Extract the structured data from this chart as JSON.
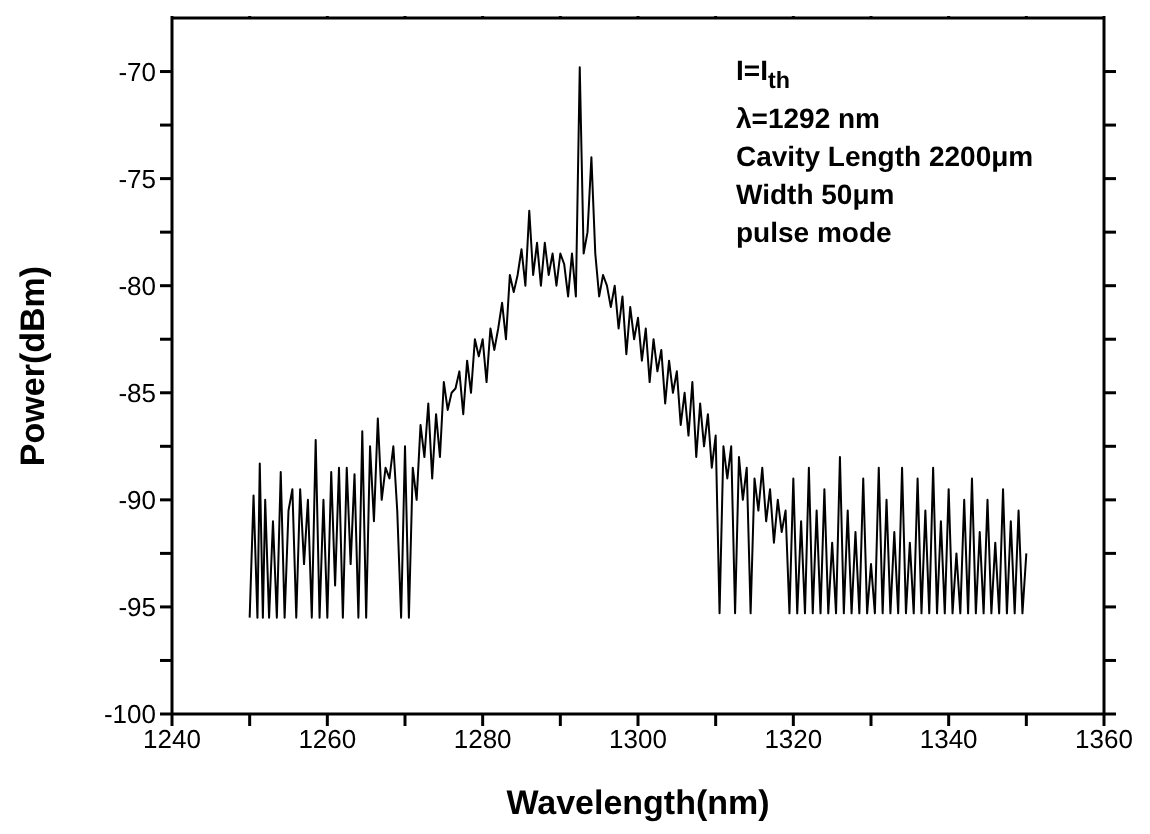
{
  "chart_data": {
    "type": "line",
    "xlabel": "Wavelength(nm)",
    "ylabel": "Power(dBm)",
    "annotations": [
      "I=I$_{th}$",
      "λ=1292 nm",
      "Cavity Length 2200μm",
      "Width 50μm",
      "pulse mode"
    ],
    "xlim": [
      1240,
      1360
    ],
    "ylim": [
      -100,
      -67.5
    ],
    "xticks": [
      1240,
      {
        "value": 1250,
        "label": null
      },
      1260,
      {
        "value": 1270,
        "label": null
      },
      1280,
      {
        "value": 1290,
        "label": null
      },
      1300,
      {
        "value": 1310,
        "label": null
      },
      1320,
      {
        "value": 1330,
        "label": null
      },
      1340,
      {
        "value": 1350,
        "label": null
      },
      1360
    ],
    "yticks": [
      -100,
      {
        "value": -97.5,
        "label": null
      },
      -95,
      {
        "value": -92.5,
        "label": null
      },
      -90,
      {
        "value": -87.5,
        "label": null
      },
      -85,
      {
        "value": -82.5,
        "label": null
      },
      -80,
      {
        "value": -77.5,
        "label": null
      },
      -75,
      {
        "value": -72.5,
        "label": null
      },
      -70
    ],
    "grid": false,
    "marker": "none",
    "line_style": "solid",
    "series": [
      {
        "color": "#000000",
        "x": [
          1250,
          1250.5,
          1251,
          1251.3,
          1251.7,
          1252,
          1252.5,
          1253,
          1253.5,
          1254,
          1254.5,
          1255,
          1255.5,
          1256,
          1256.5,
          1257,
          1257.5,
          1258,
          1258.5,
          1259,
          1259.5,
          1260,
          1260.5,
          1261,
          1261.5,
          1262,
          1262.5,
          1263,
          1263.5,
          1264,
          1264.5,
          1265,
          1265.5,
          1266,
          1266.5,
          1267,
          1267.5,
          1268,
          1268.5,
          1269,
          1269.5,
          1270,
          1270.5,
          1271,
          1271.5,
          1272,
          1272.5,
          1273,
          1273.5,
          1274,
          1274.5,
          1275,
          1275.5,
          1276,
          1276.5,
          1277,
          1277.5,
          1278,
          1278.5,
          1279,
          1279.5,
          1280,
          1280.5,
          1281,
          1281.5,
          1282,
          1282.5,
          1283,
          1283.5,
          1284,
          1284.5,
          1285,
          1285.5,
          1286,
          1286.5,
          1287,
          1287.5,
          1288,
          1288.5,
          1289,
          1289.5,
          1290,
          1290.5,
          1291,
          1291.5,
          1292,
          1292.5,
          1293,
          1293.5,
          1294,
          1294.5,
          1295,
          1295.5,
          1296,
          1296.5,
          1297,
          1297.5,
          1298,
          1298.5,
          1299,
          1299.5,
          1300,
          1300.5,
          1301,
          1301.5,
          1302,
          1302.5,
          1303,
          1303.5,
          1304,
          1304.5,
          1305,
          1305.5,
          1306,
          1306.5,
          1307,
          1307.5,
          1308,
          1308.5,
          1309,
          1309.5,
          1310,
          1310.5,
          1311,
          1311.5,
          1312,
          1312.5,
          1313,
          1313.5,
          1314,
          1314.5,
          1315,
          1315.5,
          1316,
          1316.5,
          1317,
          1317.5,
          1318,
          1318.5,
          1319,
          1319.5,
          1320,
          1320.5,
          1321,
          1321.5,
          1322,
          1322.5,
          1323,
          1323.5,
          1324,
          1324.5,
          1325,
          1325.5,
          1326,
          1326.5,
          1327,
          1327.5,
          1328,
          1328.5,
          1329,
          1329.5,
          1330,
          1330.5,
          1331,
          1331.5,
          1332,
          1332.5,
          1333,
          1333.5,
          1334,
          1334.5,
          1335,
          1335.5,
          1336,
          1336.5,
          1337,
          1337.5,
          1338,
          1338.5,
          1339,
          1339.5,
          1340,
          1340.5,
          1341,
          1341.5,
          1342,
          1342.5,
          1343,
          1343.5,
          1344,
          1344.5,
          1345,
          1345.5,
          1346,
          1346.5,
          1347,
          1347.5,
          1348,
          1348.5,
          1349,
          1349.5,
          1350
        ],
        "values": [
          -95.5,
          -89.8,
          -95.5,
          -88.3,
          -95.5,
          -90,
          -95.5,
          -91,
          -95.5,
          -88.7,
          -95.5,
          -90.5,
          -89.5,
          -95.5,
          -89.5,
          -93,
          -90,
          -95.5,
          -87.2,
          -95.5,
          -90,
          -95.5,
          -88.7,
          -94,
          -88.5,
          -95.5,
          -88.5,
          -93,
          -88.8,
          -95.5,
          -86.8,
          -95.5,
          -87.5,
          -91,
          -86.2,
          -90,
          -88.5,
          -89,
          -87.5,
          -90.5,
          -95.5,
          -87.5,
          -95.5,
          -88.5,
          -90,
          -86.5,
          -88,
          -85.5,
          -89,
          -86,
          -88,
          -84.5,
          -85.8,
          -85,
          -84.8,
          -84,
          -86,
          -83.5,
          -85,
          -82.5,
          -83.3,
          -82.5,
          -84.5,
          -82,
          -83,
          -82,
          -80.8,
          -82.5,
          -79.5,
          -80.3,
          -79.5,
          -78.3,
          -80,
          -76.5,
          -79.5,
          -78,
          -80,
          -78,
          -79.5,
          -78.5,
          -80,
          -78.5,
          -79,
          -80.5,
          -78.5,
          -80.5,
          -69.8,
          -78.5,
          -77.5,
          -74,
          -78.5,
          -80.5,
          -79.5,
          -80,
          -81,
          -80,
          -82,
          -80.5,
          -83.2,
          -81,
          -82.5,
          -81.5,
          -83.5,
          -82,
          -84.5,
          -82.5,
          -84,
          -83,
          -85.5,
          -83.5,
          -85,
          -84,
          -86.5,
          -85,
          -87,
          -84.5,
          -88,
          -85.5,
          -87.5,
          -86,
          -88.5,
          -87,
          -95.3,
          -87.5,
          -89,
          -87.5,
          -95.3,
          -88,
          -90,
          -88.5,
          -95.3,
          -89,
          -90.5,
          -88.5,
          -91,
          -89.5,
          -92,
          -90,
          -91.5,
          -90.5,
          -95.3,
          -89,
          -95.3,
          -91,
          -95.3,
          -88.5,
          -95.3,
          -90.5,
          -95.3,
          -89.5,
          -95.3,
          -92,
          -95.3,
          -88,
          -95.3,
          -90.5,
          -95.3,
          -91.5,
          -95.3,
          -89,
          -95.3,
          -93,
          -95.3,
          -88.5,
          -95.3,
          -90,
          -95.3,
          -91.5,
          -95.3,
          -88.5,
          -95.3,
          -92,
          -95.3,
          -89,
          -95.3,
          -90.5,
          -95.3,
          -88.5,
          -95.3,
          -91,
          -95.3,
          -89.5,
          -95.3,
          -92.5,
          -95.3,
          -90,
          -95.3,
          -89,
          -95.3,
          -91.5,
          -95.3,
          -90,
          -95.3,
          -92,
          -95.3,
          -89.5,
          -95.3,
          -91,
          -95.3,
          -90.5,
          -95.3,
          -92.5
        ]
      }
    ]
  }
}
